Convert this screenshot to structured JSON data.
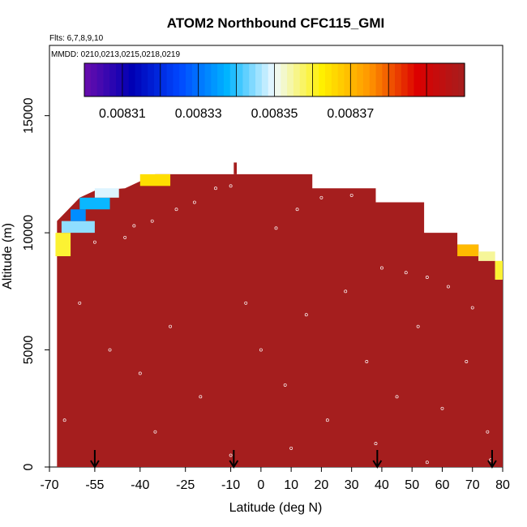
{
  "chart_data": {
    "type": "heatmap",
    "title": "ATOM2 Northbound CFC115_GMI",
    "subtitle_flights": "Flts: 6,7,8,9,10",
    "subtitle_dates": "MMDD: 0210,0213,0215,0218,0219",
    "xlabel": "Latitude (deg N)",
    "ylabel": "Altitude (m)",
    "xlim": [
      -70,
      80
    ],
    "ylim": [
      0,
      18000
    ],
    "x_ticks": [
      -70,
      -55,
      -40,
      -25,
      -10,
      0,
      10,
      20,
      30,
      40,
      50,
      60,
      70,
      80
    ],
    "x_tick_labels": [
      "-70",
      "-55",
      "-40",
      "-25",
      "-10",
      "0",
      "10",
      "20",
      "30",
      "40",
      "50",
      "60",
      "70",
      "80"
    ],
    "y_ticks": [
      0,
      5000,
      10000,
      15000
    ],
    "y_tick_labels": [
      "0",
      "5000",
      "10000",
      "15000"
    ],
    "colorbar": {
      "min": 0.0083,
      "max": 0.0084,
      "tick_values": [
        0.00831,
        0.00833,
        0.00835,
        0.00837
      ],
      "tick_labels": [
        "0.00831",
        "0.00833",
        "0.00835",
        "0.00837"
      ],
      "colors": [
        "#6a0dad",
        "#0000b4",
        "#0047ff",
        "#00b4ff",
        "#f0faff",
        "#fff000",
        "#ff9600",
        "#dc0000",
        "#a51e1e"
      ]
    },
    "background_color": "#a51e1e",
    "curtain_top": [
      {
        "lat": -67.5,
        "alt": 10500
      },
      {
        "lat": -60,
        "alt": 11500
      },
      {
        "lat": -55,
        "alt": 11800
      },
      {
        "lat": -45,
        "alt": 11900
      },
      {
        "lat": -35,
        "alt": 12500
      },
      {
        "lat": -10,
        "alt": 12500
      },
      {
        "lat": 5,
        "alt": 12500
      },
      {
        "lat": 17,
        "alt": 12500
      },
      {
        "lat": 17,
        "alt": 11900
      },
      {
        "lat": 30,
        "alt": 11900
      },
      {
        "lat": 38,
        "alt": 11900
      },
      {
        "lat": 38,
        "alt": 11300
      },
      {
        "lat": 42,
        "alt": 11300
      },
      {
        "lat": 50,
        "alt": 11300
      },
      {
        "lat": 54,
        "alt": 11300
      },
      {
        "lat": 54,
        "alt": 10000
      },
      {
        "lat": 65,
        "alt": 10000
      },
      {
        "lat": 65,
        "alt": 9500
      },
      {
        "lat": 72,
        "alt": 9500
      },
      {
        "lat": 72,
        "alt": 8800
      },
      {
        "lat": 77.5,
        "alt": 8800
      },
      {
        "lat": 77.5,
        "alt": 8000
      },
      {
        "lat": 80,
        "alt": 8000
      }
    ],
    "plume_top_alt": 13000,
    "plume_lat": -8.5,
    "high_value_cells": [
      {
        "lat_from": -68,
        "lat_to": -63,
        "alt_from": 9000,
        "alt_to": 10000,
        "value": 0.00836
      },
      {
        "lat_from": -66,
        "lat_to": -55,
        "alt_from": 10000,
        "alt_to": 10500,
        "value": 0.008345
      },
      {
        "lat_from": -63,
        "lat_to": -58,
        "alt_from": 10500,
        "alt_to": 11000,
        "value": 0.008333
      },
      {
        "lat_from": -60,
        "lat_to": -50,
        "alt_from": 11000,
        "alt_to": 11500,
        "value": 0.008338
      },
      {
        "lat_from": -55,
        "lat_to": -47,
        "alt_from": 11500,
        "alt_to": 11900,
        "value": 0.008349
      },
      {
        "lat_from": -40,
        "lat_to": -30,
        "alt_from": 12000,
        "alt_to": 12500,
        "value": 0.008365
      },
      {
        "lat_from": 65,
        "lat_to": 72,
        "alt_from": 9000,
        "alt_to": 9500,
        "value": 0.00837
      },
      {
        "lat_from": 72,
        "lat_to": 77.5,
        "alt_from": 8800,
        "alt_to": 9200,
        "value": 0.008355
      },
      {
        "lat_from": 77.5,
        "lat_to": 80,
        "alt_from": 8000,
        "alt_to": 8800,
        "value": 0.00836
      }
    ],
    "sample_points": [
      {
        "lat": -45,
        "alt": 9800
      },
      {
        "lat": -42,
        "alt": 10300
      },
      {
        "lat": -36,
        "alt": 10500
      },
      {
        "lat": -28,
        "alt": 11000
      },
      {
        "lat": -22,
        "alt": 11300
      },
      {
        "lat": -15,
        "alt": 11900
      },
      {
        "lat": -55,
        "alt": 9600
      },
      {
        "lat": -10,
        "alt": 12000
      },
      {
        "lat": 5,
        "alt": 10200
      },
      {
        "lat": 12,
        "alt": 11000
      },
      {
        "lat": 20,
        "alt": 11500
      },
      {
        "lat": 30,
        "alt": 11600
      },
      {
        "lat": 40,
        "alt": 8500
      },
      {
        "lat": 48,
        "alt": 8300
      },
      {
        "lat": 55,
        "alt": 8100
      },
      {
        "lat": 62,
        "alt": 7700
      },
      {
        "lat": 70,
        "alt": 6800
      },
      {
        "lat": -60,
        "alt": 7000
      },
      {
        "lat": -50,
        "alt": 5000
      },
      {
        "lat": -40,
        "alt": 4000
      },
      {
        "lat": -30,
        "alt": 6000
      },
      {
        "lat": -20,
        "alt": 3000
      },
      {
        "lat": -5,
        "alt": 7000
      },
      {
        "lat": 0,
        "alt": 5000
      },
      {
        "lat": 8,
        "alt": 3500
      },
      {
        "lat": 15,
        "alt": 6500
      },
      {
        "lat": 22,
        "alt": 2000
      },
      {
        "lat": 28,
        "alt": 7500
      },
      {
        "lat": 35,
        "alt": 4500
      },
      {
        "lat": 45,
        "alt": 3000
      },
      {
        "lat": 52,
        "alt": 6000
      },
      {
        "lat": 60,
        "alt": 2500
      },
      {
        "lat": 68,
        "alt": 4500
      },
      {
        "lat": 75,
        "alt": 1500
      },
      {
        "lat": -65,
        "alt": 2000
      },
      {
        "lat": -35,
        "alt": 1500
      },
      {
        "lat": -10,
        "alt": 500
      },
      {
        "lat": 10,
        "alt": 800
      },
      {
        "lat": 38,
        "alt": 1000
      },
      {
        "lat": 55,
        "alt": 200
      },
      {
        "lat": 76,
        "alt": 300
      }
    ],
    "flight_markers_lat": [
      -55,
      -9,
      38.5,
      76.5
    ]
  }
}
